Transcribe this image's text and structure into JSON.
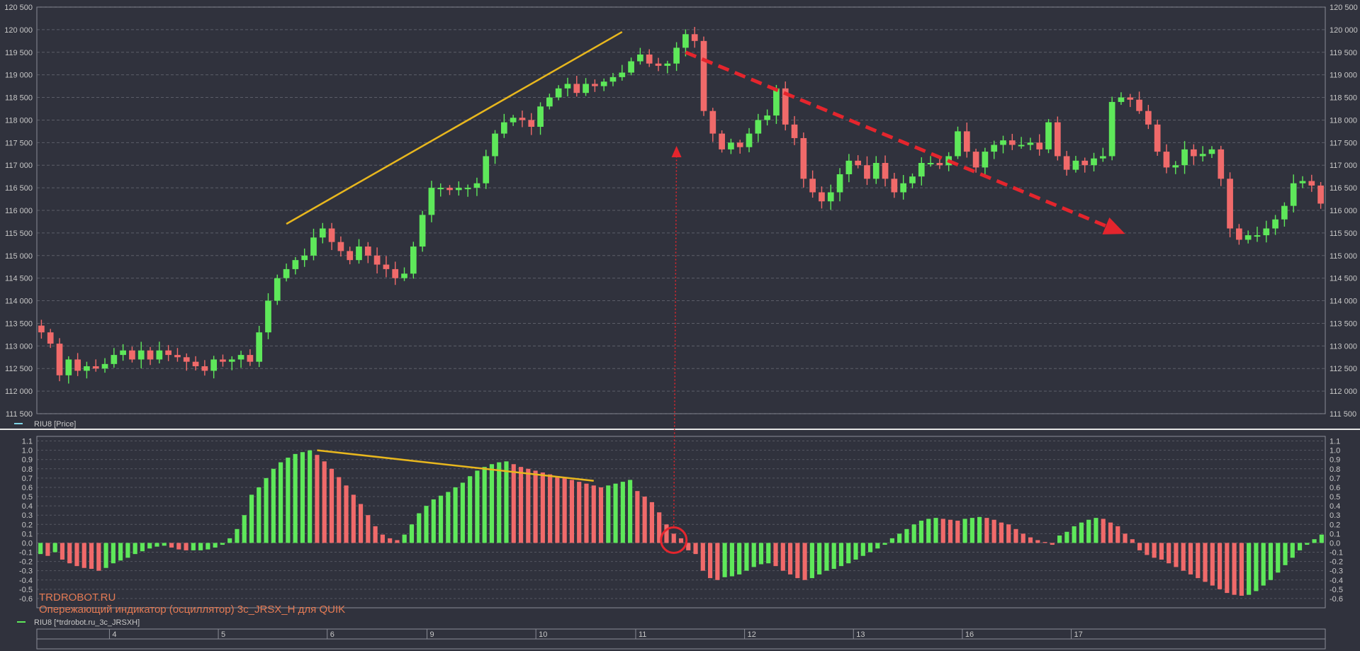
{
  "chart_data": [
    {
      "type": "candlestick",
      "legend": "RIU8 [Price]",
      "y_range": [
        111500,
        120500
      ],
      "y_ticks": [
        111500,
        112000,
        112500,
        113000,
        113500,
        114000,
        114500,
        115000,
        115500,
        116000,
        116500,
        117000,
        117500,
        118000,
        118500,
        119000,
        119500,
        120000,
        120500
      ],
      "y_tick_labels": [
        "111 500",
        "112 000",
        "112 500",
        "113 000",
        "113 500",
        "114 000",
        "114 500",
        "115 000",
        "115 500",
        "116 000",
        "116 500",
        "117 000",
        "117 500",
        "118 000",
        "118 500",
        "119 000",
        "119 500",
        "120 000",
        "120 500"
      ],
      "series_close": [
        113300,
        113050,
        112350,
        112700,
        112450,
        112550,
        112500,
        112600,
        112800,
        112900,
        112700,
        112900,
        112700,
        112900,
        112800,
        112750,
        112650,
        112550,
        112450,
        112700,
        112650,
        112700,
        112800,
        112650,
        113300,
        114000,
        114500,
        114700,
        114900,
        115000,
        115400,
        115600,
        115300,
        115100,
        114900,
        115200,
        115000,
        114800,
        114700,
        114500,
        114600,
        115200,
        115900,
        116500,
        116500,
        116450,
        116500,
        116500,
        116600,
        117200,
        117700,
        117950,
        118050,
        118000,
        117850,
        118300,
        118500,
        118700,
        118800,
        118600,
        118800,
        118750,
        118850,
        118950,
        119050,
        119300,
        119450,
        119250,
        119200,
        119250,
        119600,
        119900,
        119750,
        118200,
        117700,
        117350,
        117500,
        117400,
        117700,
        118000,
        118100,
        118700,
        117900,
        117600,
        116700,
        116400,
        116200,
        116400,
        116800,
        117100,
        117000,
        116700,
        117050,
        116700,
        116400,
        116600,
        116750,
        117050,
        117050,
        117000,
        117200,
        117750,
        117300,
        116950,
        117300,
        117450,
        117550,
        117450,
        117450,
        117500,
        117350,
        117950,
        117200,
        116900,
        117100,
        117000,
        117150,
        117200,
        118400,
        118500,
        118450,
        118200,
        117900,
        117300,
        116950,
        117000,
        117350,
        117200,
        117250,
        117350,
        116700,
        115600,
        115350,
        115450,
        115450,
        115600,
        115800,
        116100,
        116600,
        116650,
        116550,
        116150
      ],
      "date_labels": [
        "4",
        "5",
        "6",
        "9",
        "10",
        "11",
        "12",
        "13",
        "16",
        "17"
      ],
      "date_label_index": [
        8,
        20,
        32,
        43,
        55,
        66,
        78,
        90,
        102,
        114
      ],
      "trendlines": [
        {
          "from": [
            27,
            115700
          ],
          "to": [
            64,
            119950
          ],
          "color": "#e8b71e"
        },
        {
          "from": [
            71,
            119500
          ],
          "to": [
            118,
            115600
          ],
          "color": "#e4252d",
          "dashed": true,
          "arrow": true
        }
      ]
    },
    {
      "type": "bar",
      "legend": "RIU8 [*trdrobot.ru_3c_JRSXH]",
      "y_range": [
        -0.7,
        1.15
      ],
      "y_ticks": [
        -0.6,
        -0.5,
        -0.4,
        -0.3,
        -0.2,
        -0.1,
        0.0,
        0.1,
        0.2,
        0.3,
        0.4,
        0.5,
        0.6,
        0.7,
        0.8,
        0.9,
        1.0,
        1.1
      ],
      "y_tick_labels": [
        "-0.6",
        "-0.5",
        "-0.4",
        "-0.3",
        "-0.2",
        "-0.1",
        "0.0",
        "0.1",
        "0.2",
        "0.3",
        "0.4",
        "0.5",
        "0.6",
        "0.7",
        "0.8",
        "0.9",
        "1.0",
        "1.1"
      ],
      "values": [
        -0.12,
        -0.14,
        -0.1,
        -0.18,
        -0.22,
        -0.25,
        -0.27,
        -0.28,
        -0.3,
        -0.27,
        -0.22,
        -0.19,
        -0.16,
        -0.12,
        -0.09,
        -0.06,
        -0.04,
        -0.03,
        -0.05,
        -0.07,
        -0.08,
        -0.08,
        -0.08,
        -0.07,
        -0.05,
        -0.02,
        0.05,
        0.15,
        0.3,
        0.52,
        0.6,
        0.7,
        0.8,
        0.87,
        0.92,
        0.96,
        0.98,
        1.0,
        0.95,
        0.88,
        0.8,
        0.71,
        0.62,
        0.52,
        0.42,
        0.3,
        0.18,
        0.09,
        0.05,
        0.03,
        0.09,
        0.2,
        0.32,
        0.4,
        0.47,
        0.51,
        0.55,
        0.6,
        0.65,
        0.72,
        0.78,
        0.82,
        0.85,
        0.87,
        0.88,
        0.85,
        0.82,
        0.8,
        0.78,
        0.76,
        0.74,
        0.72,
        0.7,
        0.68,
        0.66,
        0.64,
        0.62,
        0.6,
        0.62,
        0.64,
        0.66,
        0.68,
        0.56,
        0.5,
        0.44,
        0.33,
        0.2,
        0.1,
        0.05,
        -0.08,
        -0.12,
        -0.3,
        -0.38,
        -0.4,
        -0.37,
        -0.36,
        -0.34,
        -0.3,
        -0.26,
        -0.23,
        -0.22,
        -0.25,
        -0.3,
        -0.34,
        -0.38,
        -0.4,
        -0.38,
        -0.34,
        -0.3,
        -0.28,
        -0.25,
        -0.22,
        -0.18,
        -0.14,
        -0.1,
        -0.06,
        -0.02,
        0.05,
        0.1,
        0.15,
        0.2,
        0.24,
        0.26,
        0.27,
        0.26,
        0.25,
        0.24,
        0.26,
        0.27,
        0.28,
        0.27,
        0.25,
        0.22,
        0.2,
        0.15,
        0.1,
        0.06,
        0.03,
        0.01,
        -0.02,
        0.08,
        0.12,
        0.18,
        0.22,
        0.25,
        0.27,
        0.26,
        0.22,
        0.18,
        0.1,
        0.04,
        -0.08,
        -0.13,
        -0.16,
        -0.18,
        -0.22,
        -0.26,
        -0.3,
        -0.34,
        -0.38,
        -0.42,
        -0.46,
        -0.5,
        -0.54,
        -0.56,
        -0.57,
        -0.56,
        -0.52,
        -0.46,
        -0.4,
        -0.32,
        -0.24,
        -0.16,
        -0.08,
        -0.02,
        0.04,
        0.09
      ],
      "trendline": {
        "from_index": 38,
        "from_value": 1.0,
        "to_index": 76,
        "to_value": 0.67,
        "color": "#e8b71e"
      },
      "marker_index": 87
    }
  ],
  "watermark": {
    "line1": "TRDROBOT.RU",
    "line2": "Опережающий индикатор (осциллятор) 3c_JRSX_H для QUIK"
  },
  "colors": {
    "up": "#5ee85a",
    "down": "#f06a6a",
    "grid": "#7a7c86",
    "signal": "#e4252d"
  }
}
